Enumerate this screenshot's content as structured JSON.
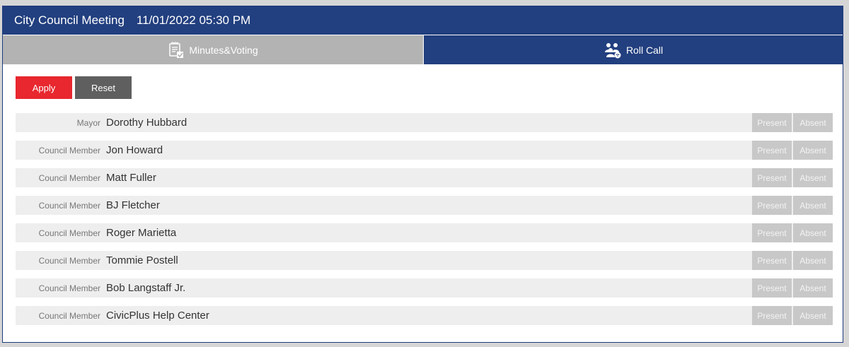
{
  "header": {
    "title": "City Council Meeting",
    "datetime": "11/01/2022 05:30 PM"
  },
  "tabs": [
    {
      "label": "Minutes&Voting",
      "icon": "clipboard-check-icon"
    },
    {
      "label": "Roll Call",
      "icon": "people-group-icon"
    }
  ],
  "actions": {
    "apply_label": "Apply",
    "reset_label": "Reset"
  },
  "status_labels": {
    "present": "Present",
    "absent": "Absent"
  },
  "members": [
    {
      "role": "Mayor",
      "name": "Dorothy Hubbard"
    },
    {
      "role": "Council Member",
      "name": "Jon Howard"
    },
    {
      "role": "Council Member",
      "name": "Matt Fuller"
    },
    {
      "role": "Council Member",
      "name": "BJ Fletcher"
    },
    {
      "role": "Council Member",
      "name": "Roger Marietta"
    },
    {
      "role": "Council Member",
      "name": "Tommie Postell"
    },
    {
      "role": "Council Member",
      "name": "Bob Langstaff Jr."
    },
    {
      "role": "Council Member",
      "name": "CivicPlus Help Center"
    }
  ],
  "colors": {
    "header_bg": "#223f7f",
    "inactive_tab_bg": "#b3b3b3",
    "apply_bg": "#e8272e",
    "reset_bg": "#5f5f5f",
    "row_bg": "#eeeeee",
    "status_button_bg": "#c8c8c8"
  }
}
